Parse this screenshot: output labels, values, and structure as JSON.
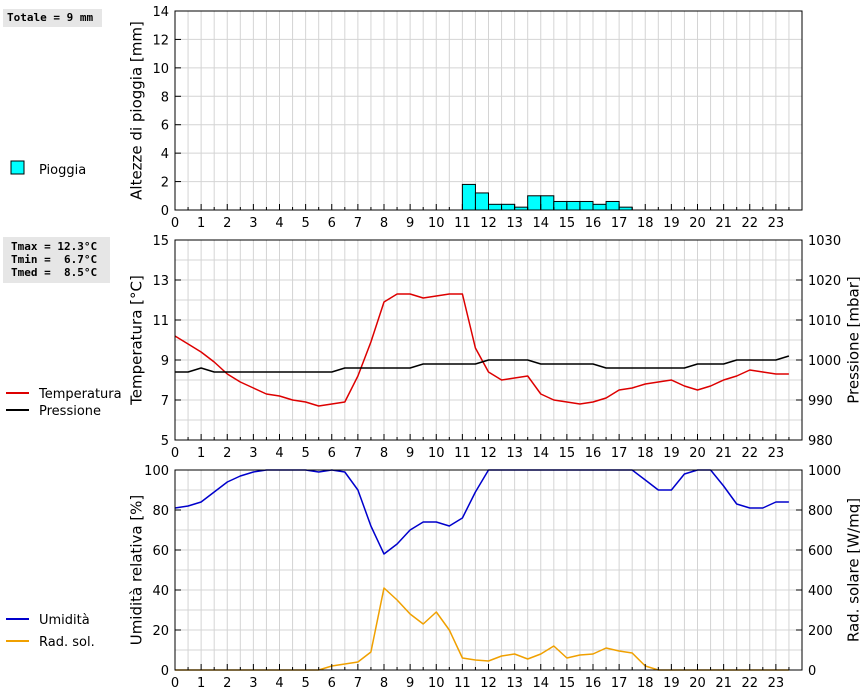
{
  "summary": {
    "total_rain": "Totale = 9 mm",
    "temp_lines": [
      "Tmax = 12.3°C",
      "Tmin =  6.7°C",
      "Tmed =  8.5°C"
    ]
  },
  "chart_data": [
    {
      "type": "bar",
      "ylabel": "Altezze di pioggia [mm]",
      "ylim": [
        0,
        14
      ],
      "yticks": [
        0,
        2,
        4,
        6,
        8,
        10,
        12,
        14
      ],
      "xlim": [
        0,
        24
      ],
      "xticks": [
        0,
        1,
        2,
        3,
        4,
        5,
        6,
        7,
        8,
        9,
        10,
        11,
        12,
        13,
        14,
        15,
        16,
        17,
        18,
        19,
        20,
        21,
        22,
        23
      ],
      "legend": [
        {
          "label": "Pioggia",
          "color": "#00ffff"
        }
      ],
      "series": [
        {
          "name": "Pioggia",
          "color": "#00ffff",
          "bar_width": 0.5,
          "x": [
            11.0,
            11.5,
            12.0,
            12.5,
            13.0,
            13.5,
            14.0,
            14.5,
            15.0,
            15.5,
            16.0,
            16.5,
            17.0
          ],
          "values": [
            1.8,
            1.2,
            0.4,
            0.4,
            0.2,
            1.0,
            1.0,
            0.6,
            0.6,
            0.6,
            0.4,
            0.6,
            0.2
          ]
        }
      ]
    },
    {
      "type": "line",
      "ylabel": "Temperatura [°C]",
      "ylabel_right": "Pressione [mbar]",
      "ylim": [
        5,
        15
      ],
      "yticks": [
        5,
        7,
        9,
        11,
        13,
        15
      ],
      "ylim_right": [
        980,
        1030
      ],
      "yticks_right": [
        980,
        990,
        1000,
        1010,
        1020,
        1030
      ],
      "xlim": [
        0,
        24
      ],
      "xticks": [
        0,
        1,
        2,
        3,
        4,
        5,
        6,
        7,
        8,
        9,
        10,
        11,
        12,
        13,
        14,
        15,
        16,
        17,
        18,
        19,
        20,
        21,
        22,
        23
      ],
      "legend": [
        {
          "label": "Temperatura",
          "color": "#dd0000"
        },
        {
          "label": "Pressione",
          "color": "#000000"
        }
      ],
      "series": [
        {
          "name": "Temperatura",
          "axis": "left",
          "color": "#dd0000",
          "x": [
            0,
            0.5,
            1,
            1.5,
            2,
            2.5,
            3,
            3.5,
            4,
            4.5,
            5,
            5.5,
            6,
            6.5,
            7,
            7.5,
            8,
            8.5,
            9,
            9.5,
            10,
            10.5,
            11,
            11.5,
            12,
            12.5,
            13,
            13.5,
            14,
            14.5,
            15,
            15.5,
            16,
            16.5,
            17,
            17.5,
            18,
            18.5,
            19,
            19.5,
            20,
            20.5,
            21,
            21.5,
            22,
            22.5,
            23,
            23.5
          ],
          "values": [
            10.2,
            9.8,
            9.4,
            8.9,
            8.3,
            7.9,
            7.6,
            7.3,
            7.2,
            7.0,
            6.9,
            6.7,
            6.8,
            6.9,
            8.2,
            9.9,
            11.9,
            12.3,
            12.3,
            12.1,
            12.2,
            12.3,
            12.3,
            9.6,
            8.4,
            8.0,
            8.1,
            8.2,
            7.3,
            7.0,
            6.9,
            6.8,
            6.9,
            7.1,
            7.5,
            7.6,
            7.8,
            7.9,
            8.0,
            7.7,
            7.5,
            7.7,
            8.0,
            8.2,
            8.5,
            8.4,
            8.3,
            8.3
          ]
        },
        {
          "name": "Pressione",
          "axis": "right",
          "color": "#000000",
          "x": [
            0,
            0.5,
            1,
            1.5,
            2,
            2.5,
            3,
            3.5,
            4,
            4.5,
            5,
            5.5,
            6,
            6.5,
            7,
            7.5,
            8,
            8.5,
            9,
            9.5,
            10,
            10.5,
            11,
            11.5,
            12,
            12.5,
            13,
            13.5,
            14,
            14.5,
            15,
            15.5,
            16,
            16.5,
            17,
            17.5,
            18,
            18.5,
            19,
            19.5,
            20,
            20.5,
            21,
            21.5,
            22,
            22.5,
            23,
            23.5
          ],
          "values": [
            997,
            997,
            998,
            997,
            997,
            997,
            997,
            997,
            997,
            997,
            997,
            997,
            997,
            998,
            998,
            998,
            998,
            998,
            998,
            999,
            999,
            999,
            999,
            999,
            1000,
            1000,
            1000,
            1000,
            999,
            999,
            999,
            999,
            999,
            998,
            998,
            998,
            998,
            998,
            998,
            998,
            999,
            999,
            999,
            1000,
            1000,
            1000,
            1000,
            1001
          ]
        }
      ]
    },
    {
      "type": "line",
      "ylabel": "Umidità relativa [%]",
      "ylabel_right": "Rad. solare [W/mq]",
      "ylim": [
        0,
        100
      ],
      "yticks": [
        0,
        20,
        40,
        60,
        80,
        100
      ],
      "ylim_right": [
        0,
        1000
      ],
      "yticks_right": [
        0,
        200,
        400,
        600,
        800,
        1000
      ],
      "xlim": [
        0,
        24
      ],
      "xticks": [
        0,
        1,
        2,
        3,
        4,
        5,
        6,
        7,
        8,
        9,
        10,
        11,
        12,
        13,
        14,
        15,
        16,
        17,
        18,
        19,
        20,
        21,
        22,
        23
      ],
      "legend": [
        {
          "label": "Umidità",
          "color": "#0000cc"
        },
        {
          "label": "Rad. sol.",
          "color": "#f0a000"
        }
      ],
      "series": [
        {
          "name": "Umidità",
          "axis": "left",
          "color": "#0000cc",
          "x": [
            0,
            0.5,
            1,
            1.5,
            2,
            2.5,
            3,
            3.5,
            4,
            4.5,
            5,
            5.5,
            6,
            6.5,
            7,
            7.5,
            8,
            8.5,
            9,
            9.5,
            10,
            10.5,
            11,
            11.5,
            12,
            12.5,
            13,
            13.5,
            14,
            14.5,
            15,
            15.5,
            16,
            16.5,
            17,
            17.5,
            18,
            18.5,
            19,
            19.5,
            20,
            20.5,
            21,
            21.5,
            22,
            22.5,
            23,
            23.5
          ],
          "values": [
            81,
            82,
            84,
            89,
            94,
            97,
            99,
            100,
            100,
            100,
            100,
            99,
            100,
            99,
            90,
            72,
            58,
            63,
            70,
            74,
            74,
            72,
            76,
            89,
            100,
            100,
            100,
            100,
            100,
            100,
            100,
            100,
            100,
            100,
            100,
            100,
            95,
            90,
            90,
            98,
            100,
            100,
            92,
            83,
            81,
            81,
            84,
            84
          ]
        },
        {
          "name": "Rad. sol.",
          "axis": "right",
          "color": "#f0a000",
          "x": [
            0,
            0.5,
            1,
            1.5,
            2,
            2.5,
            3,
            3.5,
            4,
            4.5,
            5,
            5.5,
            6,
            6.5,
            7,
            7.5,
            8,
            8.5,
            9,
            9.5,
            10,
            10.5,
            11,
            11.5,
            12,
            12.5,
            13,
            13.5,
            14,
            14.5,
            15,
            15.5,
            16,
            16.5,
            17,
            17.5,
            18,
            18.5,
            19,
            19.5,
            20,
            20.5,
            21,
            21.5,
            22,
            22.5,
            23,
            23.5
          ],
          "values": [
            0,
            0,
            0,
            0,
            0,
            0,
            0,
            0,
            0,
            0,
            0,
            0,
            20,
            30,
            40,
            90,
            410,
            350,
            280,
            230,
            290,
            200,
            60,
            50,
            45,
            70,
            80,
            55,
            80,
            120,
            60,
            75,
            80,
            110,
            95,
            85,
            20,
            0,
            0,
            0,
            0,
            0,
            0,
            0,
            0,
            0,
            0,
            0
          ]
        }
      ]
    }
  ]
}
